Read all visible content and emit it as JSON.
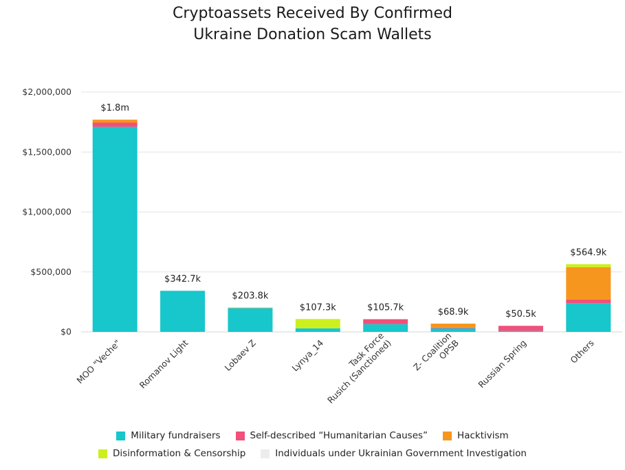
{
  "chart_data": {
    "type": "bar",
    "stacked": true,
    "title_lines": [
      "Cryptoassets Received By Confirmed",
      "Ukraine Donation Scam Wallets"
    ],
    "categories": [
      "MOO \"Veche\"",
      "Romanov Light",
      "Lobaev Z",
      "Lynya_14",
      "Task Force\nRusich (Sanctioned)",
      "Z- Coalition\nOPSB",
      "Russian Spring",
      "Others"
    ],
    "ylim": [
      0,
      2000000
    ],
    "yticks": [
      0,
      500000,
      1000000,
      1500000,
      2000000
    ],
    "ytick_labels": [
      "$0",
      "$500,000",
      "$1,000,000",
      "$1,500,000",
      "$2,000,000"
    ],
    "grid": true,
    "series": [
      {
        "name": "Military fundraisers",
        "color": "#17C7CC",
        "values": [
          1710000,
          342700,
          198000,
          30000,
          65000,
          30000,
          8000,
          240000
        ]
      },
      {
        "name": "Self-described “Humanitarian Causes”",
        "color": "#F0507A",
        "values": [
          35000,
          0,
          0,
          0,
          40700,
          5000,
          42500,
          30000
        ]
      },
      {
        "name": "Hacktivism",
        "color": "#F7961E",
        "values": [
          25000,
          0,
          2000,
          0,
          0,
          33900,
          0,
          270000
        ]
      },
      {
        "name": "Disinformation & Censorship",
        "color": "#CCF01E",
        "values": [
          0,
          0,
          3800,
          77300,
          0,
          0,
          0,
          24900
        ]
      },
      {
        "name": "Individuals under Ukrainian Government Investigation",
        "color": "#EEEDEC",
        "values": [
          0,
          0,
          0,
          0,
          0,
          0,
          0,
          0
        ]
      }
    ],
    "totals_labels": [
      "$1.8m",
      "$342.7k",
      "$203.8k",
      "$107.3k",
      "$105.7k",
      "$68.9k",
      "$50.5k",
      "$564.9k"
    ],
    "legend_rows": [
      [
        0,
        1,
        2
      ],
      [
        3,
        4
      ]
    ]
  }
}
